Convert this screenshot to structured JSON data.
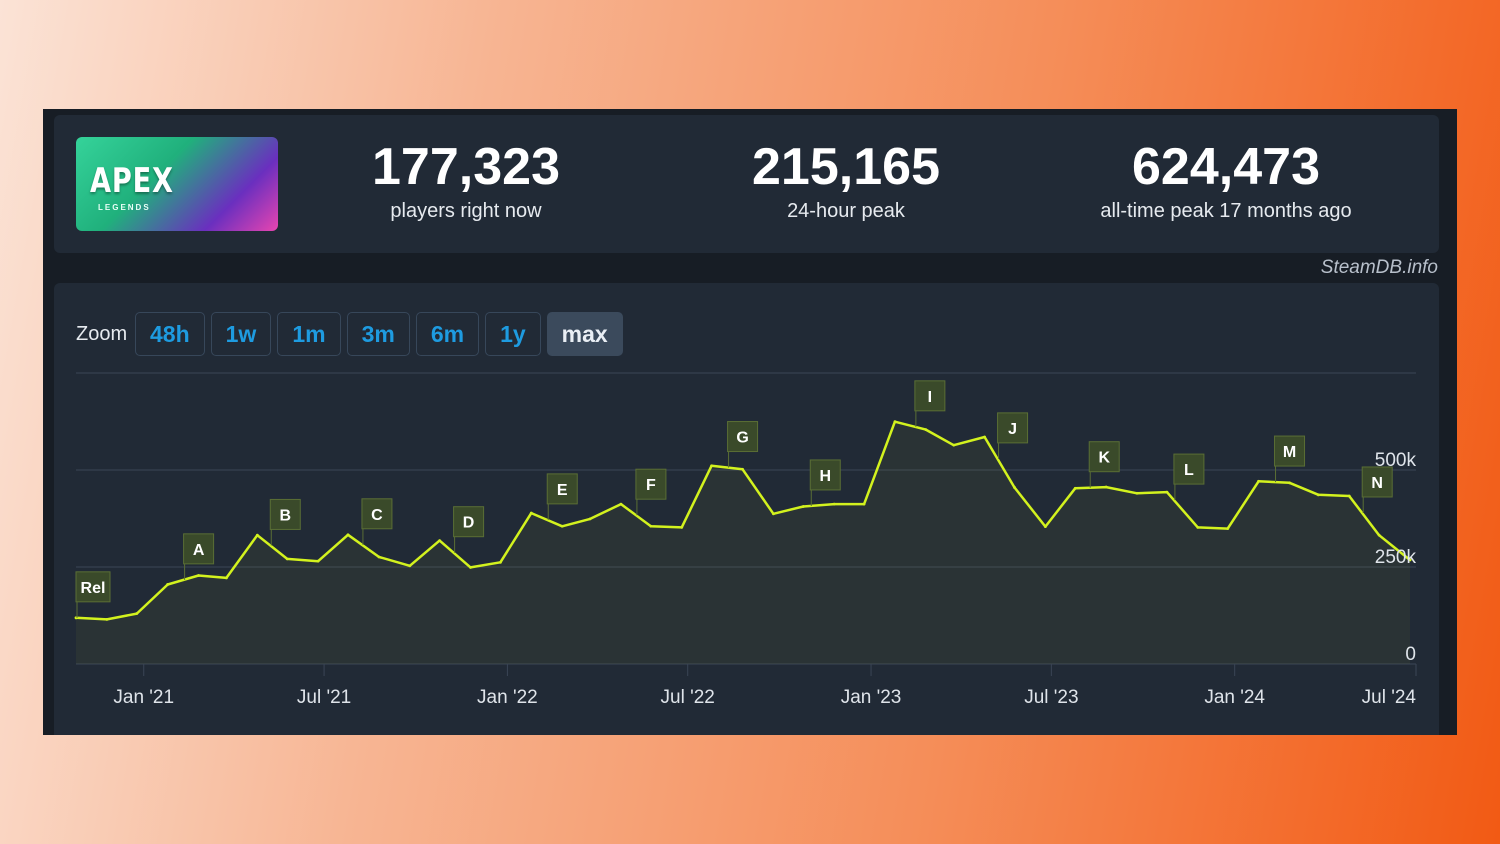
{
  "stats": [
    {
      "value": "177,323",
      "label": "players right now"
    },
    {
      "value": "215,165",
      "label": "24-hour peak"
    },
    {
      "value": "624,473",
      "label": "all-time peak 17 months ago"
    }
  ],
  "thumbnail": {
    "logo_text": "APEX",
    "sub_text": "LEGENDS"
  },
  "credit": "SteamDB.info",
  "zoom": {
    "label": "Zoom",
    "options": [
      "48h",
      "1w",
      "1m",
      "3m",
      "6m",
      "1y",
      "max"
    ],
    "active": "max"
  },
  "colors": {
    "line": "#d3f21e",
    "flag_bg": "#3a4a2a",
    "flag_border": "#5a6e35",
    "grid": "#3a4555"
  },
  "chart_data": {
    "type": "line",
    "x_type": "date",
    "y_ticks": [
      {
        "value": 0,
        "label": "0"
      },
      {
        "value": 250000,
        "label": "250k"
      },
      {
        "value": 500000,
        "label": "500k"
      }
    ],
    "ylim": [
      0,
      750000
    ],
    "x_ticks": [
      {
        "date": "2021-01-01",
        "label": "Jan '21"
      },
      {
        "date": "2021-07-01",
        "label": "Jul '21"
      },
      {
        "date": "2022-01-01",
        "label": "Jan '22"
      },
      {
        "date": "2022-07-01",
        "label": "Jul '22"
      },
      {
        "date": "2023-01-01",
        "label": "Jan '23"
      },
      {
        "date": "2023-07-01",
        "label": "Jul '23"
      },
      {
        "date": "2024-01-01",
        "label": "Jan '24"
      },
      {
        "date": "2024-07-01",
        "label": "Jul '24"
      }
    ],
    "xlim": [
      "2020-10-25",
      "2024-07-01"
    ],
    "series": [
      {
        "points": [
          [
            "2020-10-25",
            119000
          ],
          [
            "2020-11-25",
            115000
          ],
          [
            "2020-12-25",
            130000
          ],
          [
            "2021-01-25",
            205000
          ],
          [
            "2021-02-25",
            228000
          ],
          [
            "2021-03-25",
            222000
          ],
          [
            "2021-04-25",
            332000
          ],
          [
            "2021-05-25",
            271000
          ],
          [
            "2021-06-25",
            265000
          ],
          [
            "2021-07-25",
            333000
          ],
          [
            "2021-08-25",
            276000
          ],
          [
            "2021-09-25",
            253000
          ],
          [
            "2021-10-25",
            318000
          ],
          [
            "2021-11-25",
            249000
          ],
          [
            "2021-12-25",
            262000
          ],
          [
            "2022-01-25",
            389000
          ],
          [
            "2022-02-25",
            355000
          ],
          [
            "2022-03-25",
            374000
          ],
          [
            "2022-04-25",
            412000
          ],
          [
            "2022-05-25",
            355000
          ],
          [
            "2022-06-25",
            352000
          ],
          [
            "2022-07-25",
            511000
          ],
          [
            "2022-08-25",
            502000
          ],
          [
            "2022-09-25",
            387000
          ],
          [
            "2022-10-25",
            406000
          ],
          [
            "2022-11-25",
            412000
          ],
          [
            "2022-12-25",
            412000
          ],
          [
            "2023-01-25",
            624473
          ],
          [
            "2023-02-25",
            604000
          ],
          [
            "2023-03-25",
            564000
          ],
          [
            "2023-04-25",
            585000
          ],
          [
            "2023-05-25",
            455000
          ],
          [
            "2023-06-25",
            354000
          ],
          [
            "2023-07-25",
            453000
          ],
          [
            "2023-08-25",
            456000
          ],
          [
            "2023-09-25",
            440000
          ],
          [
            "2023-10-25",
            443000
          ],
          [
            "2023-11-25",
            352000
          ],
          [
            "2023-12-25",
            349000
          ],
          [
            "2024-01-25",
            471000
          ],
          [
            "2024-02-25",
            467000
          ],
          [
            "2024-03-25",
            436000
          ],
          [
            "2024-04-25",
            433000
          ],
          [
            "2024-05-25",
            332000
          ],
          [
            "2024-06-25",
            268000
          ]
        ]
      }
    ],
    "annotations": [
      {
        "label": "Rel",
        "date": "2020-10-25"
      },
      {
        "label": "A",
        "date": "2021-02-10"
      },
      {
        "label": "B",
        "date": "2021-05-08"
      },
      {
        "label": "C",
        "date": "2021-08-08"
      },
      {
        "label": "D",
        "date": "2021-11-08"
      },
      {
        "label": "E",
        "date": "2022-02-10"
      },
      {
        "label": "F",
        "date": "2022-05-10"
      },
      {
        "label": "G",
        "date": "2022-08-10"
      },
      {
        "label": "H",
        "date": "2022-11-01"
      },
      {
        "label": "I",
        "date": "2023-02-14"
      },
      {
        "label": "J",
        "date": "2023-05-08"
      },
      {
        "label": "K",
        "date": "2023-08-08"
      },
      {
        "label": "L",
        "date": "2023-11-01"
      },
      {
        "label": "M",
        "date": "2024-02-10"
      },
      {
        "label": "N",
        "date": "2024-05-08"
      }
    ]
  }
}
